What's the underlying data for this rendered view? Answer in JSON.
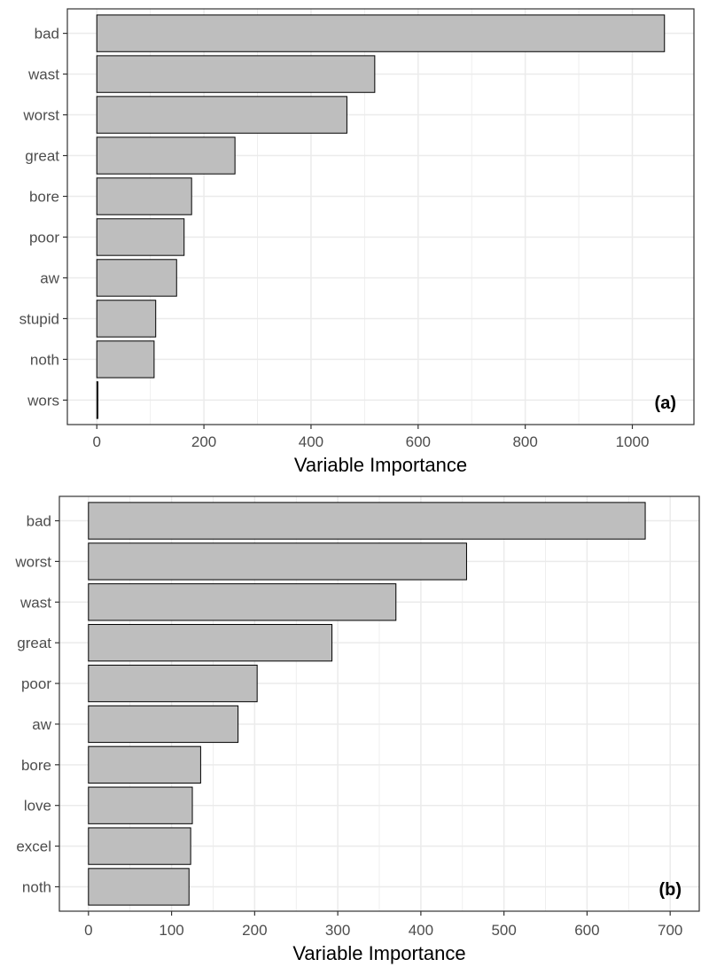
{
  "chart_data": [
    {
      "type": "bar",
      "orientation": "horizontal",
      "panel_label": "(a)",
      "title": "",
      "xlabel": "Variable Importance",
      "ylabel": "",
      "categories": [
        "bad",
        "wast",
        "worst",
        "great",
        "bore",
        "poor",
        "aw",
        "stupid",
        "noth",
        "wors"
      ],
      "values": [
        1060,
        519,
        467,
        258,
        177,
        163,
        149,
        110,
        107,
        2
      ],
      "xlim": [
        -55,
        1115
      ],
      "xticks": [
        0,
        200,
        400,
        600,
        800,
        1000
      ],
      "grid": true,
      "colors": {
        "bar_fill": "#bebebe",
        "bar_stroke": "#000000",
        "grid": "#ebebeb",
        "panel_border": "#333333",
        "text": "#4d4d4d"
      }
    },
    {
      "type": "bar",
      "orientation": "horizontal",
      "panel_label": "(b)",
      "title": "",
      "xlabel": "Variable Importance",
      "ylabel": "",
      "categories": [
        "bad",
        "worst",
        "wast",
        "great",
        "poor",
        "aw",
        "bore",
        "love",
        "excel",
        "noth"
      ],
      "values": [
        670,
        455,
        370,
        293,
        203,
        180,
        135,
        125,
        123,
        121
      ],
      "xlim": [
        -35,
        735
      ],
      "xticks": [
        0,
        100,
        200,
        300,
        400,
        500,
        600,
        700
      ],
      "grid": true,
      "colors": {
        "bar_fill": "#bebebe",
        "bar_stroke": "#000000",
        "grid": "#ebebeb",
        "panel_border": "#333333",
        "text": "#4d4d4d"
      }
    }
  ]
}
